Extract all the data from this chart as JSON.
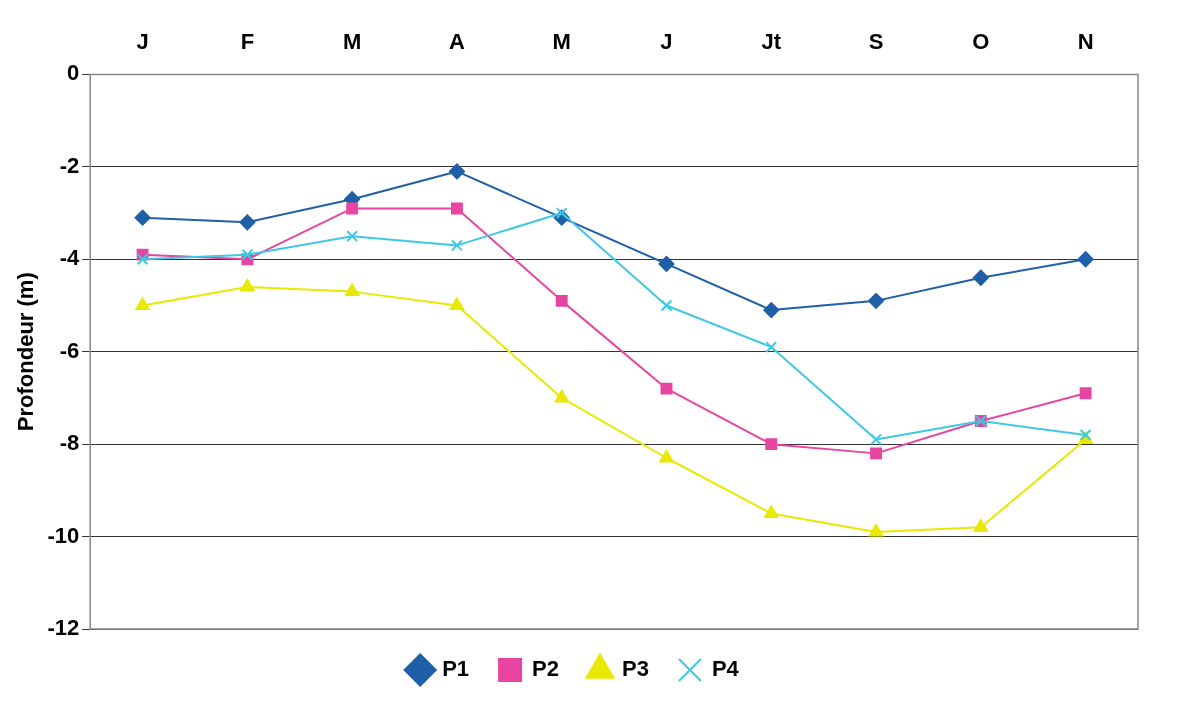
{
  "chart_data": {
    "type": "line",
    "ylabel": "Profondeur (m)",
    "categories": [
      "J",
      "F",
      "M",
      "A",
      "M",
      "J",
      "Jt",
      "S",
      "O",
      "N"
    ],
    "series": [
      {
        "name": "P1",
        "color": "#1f5fa8",
        "marker": "diamond",
        "values": [
          -3.1,
          -3.2,
          -2.7,
          -2.1,
          -3.1,
          -4.1,
          -5.1,
          -4.9,
          -4.4,
          -4.0
        ]
      },
      {
        "name": "P2",
        "color": "#e845a0",
        "marker": "square",
        "values": [
          -3.9,
          -4.0,
          -2.9,
          -2.9,
          -4.9,
          -6.8,
          -8.0,
          -8.2,
          -7.5,
          -6.9
        ]
      },
      {
        "name": "P3",
        "color": "#e8e800",
        "marker": "triangle",
        "values": [
          -5.0,
          -4.6,
          -4.7,
          -5.0,
          -7.0,
          -8.3,
          -9.5,
          -9.9,
          -9.8,
          -7.9
        ]
      },
      {
        "name": "P4",
        "color": "#3fc8e0",
        "marker": "cross",
        "values": [
          -4.0,
          -3.9,
          -3.5,
          -3.7,
          -3.0,
          -5.0,
          -5.9,
          -7.9,
          -7.5,
          -7.8
        ]
      }
    ],
    "ylim": [
      -12,
      0
    ],
    "yticks": [
      -12,
      -10,
      -8,
      -6,
      -4,
      -2,
      0
    ],
    "grid": "y",
    "legend": "bottom"
  }
}
